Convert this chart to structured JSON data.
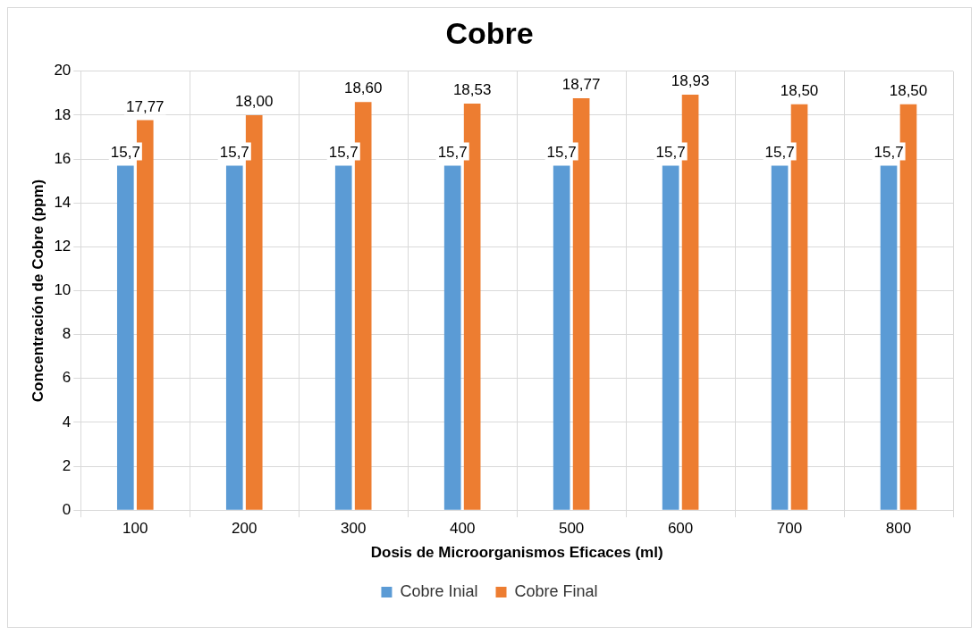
{
  "chart_data": {
    "type": "bar",
    "title": "Cobre",
    "xlabel": "Dosis de Microorganismos Eficaces (ml)",
    "ylabel": "Concentración de Cobre (ppm)",
    "categories": [
      "100",
      "200",
      "300",
      "400",
      "500",
      "600",
      "700",
      "800"
    ],
    "series": [
      {
        "name": "Cobre Inial",
        "color": "#5b9bd5",
        "values": [
          15.7,
          15.7,
          15.7,
          15.7,
          15.7,
          15.7,
          15.7,
          15.7
        ],
        "value_labels": [
          "15,7",
          "15,7",
          "15,7",
          "15,7",
          "15,7",
          "15,7",
          "15,7",
          "15,7"
        ]
      },
      {
        "name": "Cobre Final",
        "color": "#ed7d31",
        "values": [
          17.77,
          18.0,
          18.6,
          18.53,
          18.77,
          18.93,
          18.5,
          18.5
        ],
        "value_labels": [
          "17,77",
          "18,00",
          "18,60",
          "18,53",
          "18,77",
          "18,93",
          "18,50",
          "18,50"
        ]
      }
    ],
    "ylim": [
      0,
      20
    ],
    "yticks": [
      0,
      2,
      4,
      6,
      8,
      10,
      12,
      14,
      16,
      18,
      20
    ],
    "grid": true,
    "legend": "bottom"
  }
}
